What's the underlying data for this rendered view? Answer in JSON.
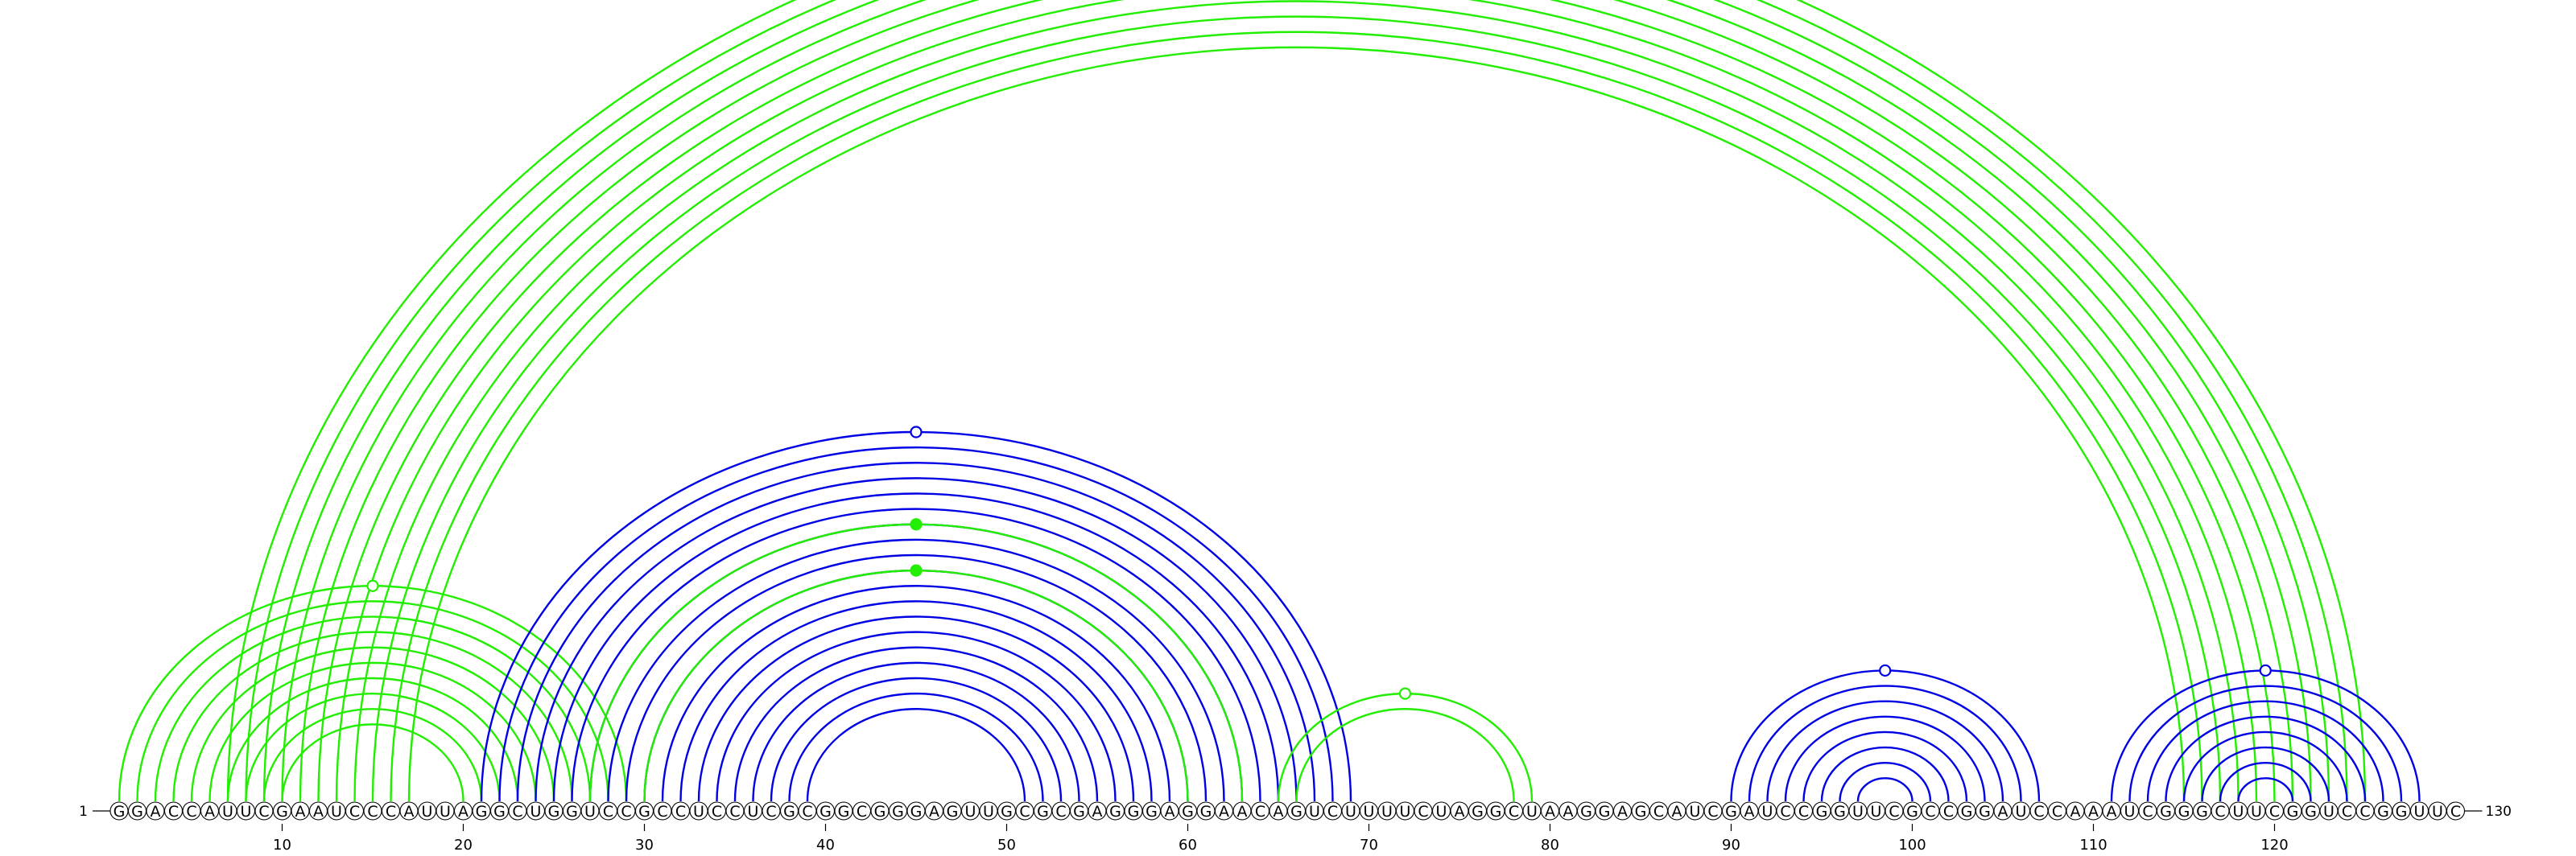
{
  "sequence": "GGACCAUUCGAAUCCCAUUAGGCUGGUCCGCCUCCUCGCGGCGGGAGUUGCGCGAGGGAGGAACAGUCUUUUCUAGGCUAAGGAGCAUCGAUCCGGUUCGCCGGAUCCAAAUCGGGCUUCGGUCCGGUUC",
  "start_label": "1",
  "end_label": "130",
  "ticks": [
    10,
    20,
    30,
    40,
    50,
    60,
    70,
    80,
    90,
    100,
    110,
    120
  ],
  "colors": {
    "blue": "#0000e6",
    "green": "#22ee00"
  },
  "arc_groups": [
    {
      "color": "green",
      "center": 66,
      "half_widths": [
        59,
        58,
        57,
        56,
        55,
        54,
        53,
        52,
        51,
        50,
        49
      ],
      "marker": "open"
    },
    {
      "color": "green",
      "center": 15,
      "half_widths": [
        14,
        13,
        12,
        11,
        10,
        9,
        8,
        7,
        6,
        5
      ],
      "marker": "open"
    },
    {
      "color": "blue",
      "center": 45,
      "half_widths": [
        24,
        23,
        22,
        21,
        20,
        19,
        18,
        17,
        16,
        15,
        14,
        13,
        12,
        11,
        10,
        9,
        8,
        7,
        6
      ],
      "marker": "open"
    },
    {
      "color": "green",
      "center": 45,
      "half_widths": [
        18
      ],
      "marker": "filled"
    },
    {
      "color": "green",
      "center": 45,
      "half_widths": [
        15
      ],
      "marker": "filled"
    },
    {
      "color": "green",
      "center": 72,
      "half_widths": [
        7,
        6
      ],
      "marker": "open"
    },
    {
      "color": "blue",
      "center": 98.5,
      "half_widths": [
        8.5,
        7.5,
        6.5,
        5.5,
        4.5,
        3.5,
        2.5,
        1.5
      ],
      "marker": "open"
    },
    {
      "color": "blue",
      "center": 119.5,
      "half_widths": [
        8.5,
        7.5,
        6.5,
        5.5,
        4.5,
        3.5,
        2.5,
        1.5
      ],
      "marker": "open"
    }
  ]
}
